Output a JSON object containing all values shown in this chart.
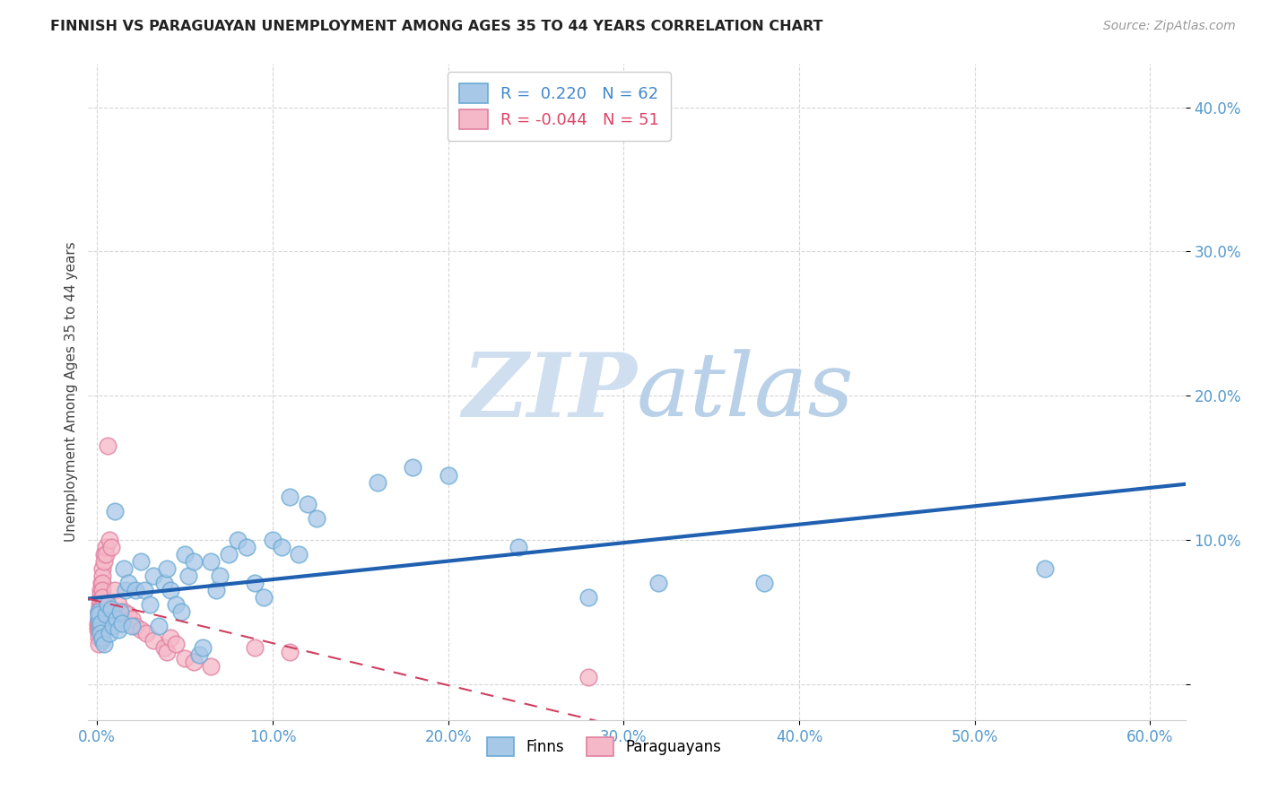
{
  "title": "FINNISH VS PARAGUAYAN UNEMPLOYMENT AMONG AGES 35 TO 44 YEARS CORRELATION CHART",
  "source": "Source: ZipAtlas.com",
  "ylabel": "Unemployment Among Ages 35 to 44 years",
  "xlim": [
    -0.005,
    0.62
  ],
  "ylim": [
    -0.025,
    0.43
  ],
  "xticks": [
    0.0,
    0.1,
    0.2,
    0.3,
    0.4,
    0.5,
    0.6
  ],
  "yticks": [
    0.0,
    0.1,
    0.2,
    0.3,
    0.4
  ],
  "ytick_labels": [
    "",
    "10.0%",
    "20.0%",
    "30.0%",
    "40.0%"
  ],
  "xtick_labels": [
    "0.0%",
    "10.0%",
    "20.0%",
    "30.0%",
    "40.0%",
    "50.0%",
    "60.0%"
  ],
  "grid_color": "#cccccc",
  "background_color": "#ffffff",
  "finn_color": "#a8c8e8",
  "finn_edge_color": "#6aaad4",
  "paraguay_color": "#f5b8c8",
  "paraguay_edge_color": "#e080a0",
  "finn_R": 0.22,
  "finn_N": 62,
  "paraguay_R": -0.044,
  "paraguay_N": 51,
  "finn_line_color": "#2060b0",
  "paraguay_line_color": "#d04060",
  "watermark_zip_color": "#d0dff0",
  "watermark_atlas_color": "#b8d0e8",
  "finns_x": [
    0.001,
    0.001,
    0.001,
    0.002,
    0.002,
    0.002,
    0.002,
    0.003,
    0.003,
    0.004,
    0.005,
    0.006,
    0.007,
    0.008,
    0.009,
    0.01,
    0.011,
    0.012,
    0.013,
    0.014,
    0.015,
    0.016,
    0.018,
    0.02,
    0.022,
    0.025,
    0.027,
    0.03,
    0.032,
    0.035,
    0.038,
    0.04,
    0.042,
    0.045,
    0.048,
    0.05,
    0.052,
    0.055,
    0.058,
    0.06,
    0.065,
    0.068,
    0.07,
    0.075,
    0.08,
    0.085,
    0.09,
    0.095,
    0.1,
    0.105,
    0.11,
    0.115,
    0.12,
    0.125,
    0.16,
    0.18,
    0.2,
    0.24,
    0.28,
    0.32,
    0.38,
    0.54
  ],
  "finns_y": [
    0.045,
    0.05,
    0.048,
    0.04,
    0.038,
    0.042,
    0.035,
    0.03,
    0.032,
    0.028,
    0.048,
    0.055,
    0.035,
    0.052,
    0.04,
    0.12,
    0.045,
    0.038,
    0.05,
    0.042,
    0.08,
    0.065,
    0.07,
    0.04,
    0.065,
    0.085,
    0.065,
    0.055,
    0.075,
    0.04,
    0.07,
    0.08,
    0.065,
    0.055,
    0.05,
    0.09,
    0.075,
    0.085,
    0.02,
    0.025,
    0.085,
    0.065,
    0.075,
    0.09,
    0.1,
    0.095,
    0.07,
    0.06,
    0.1,
    0.095,
    0.13,
    0.09,
    0.125,
    0.115,
    0.14,
    0.15,
    0.145,
    0.095,
    0.06,
    0.07,
    0.07,
    0.08
  ],
  "paraguayans_x": [
    0.0005,
    0.0005,
    0.0005,
    0.001,
    0.001,
    0.001,
    0.001,
    0.001,
    0.001,
    0.001,
    0.001,
    0.001,
    0.0015,
    0.0015,
    0.002,
    0.002,
    0.002,
    0.002,
    0.002,
    0.0025,
    0.003,
    0.003,
    0.003,
    0.003,
    0.003,
    0.004,
    0.004,
    0.005,
    0.005,
    0.006,
    0.007,
    0.008,
    0.01,
    0.012,
    0.015,
    0.018,
    0.02,
    0.022,
    0.025,
    0.028,
    0.032,
    0.038,
    0.04,
    0.042,
    0.045,
    0.05,
    0.055,
    0.065,
    0.09,
    0.11,
    0.28
  ],
  "paraguayans_y": [
    0.04,
    0.042,
    0.038,
    0.05,
    0.048,
    0.045,
    0.043,
    0.041,
    0.038,
    0.035,
    0.032,
    0.028,
    0.055,
    0.052,
    0.065,
    0.062,
    0.058,
    0.052,
    0.048,
    0.07,
    0.08,
    0.075,
    0.07,
    0.065,
    0.06,
    0.09,
    0.085,
    0.095,
    0.09,
    0.165,
    0.1,
    0.095,
    0.065,
    0.055,
    0.05,
    0.048,
    0.045,
    0.04,
    0.038,
    0.035,
    0.03,
    0.025,
    0.022,
    0.032,
    0.028,
    0.018,
    0.015,
    0.012,
    0.025,
    0.022,
    0.005
  ]
}
